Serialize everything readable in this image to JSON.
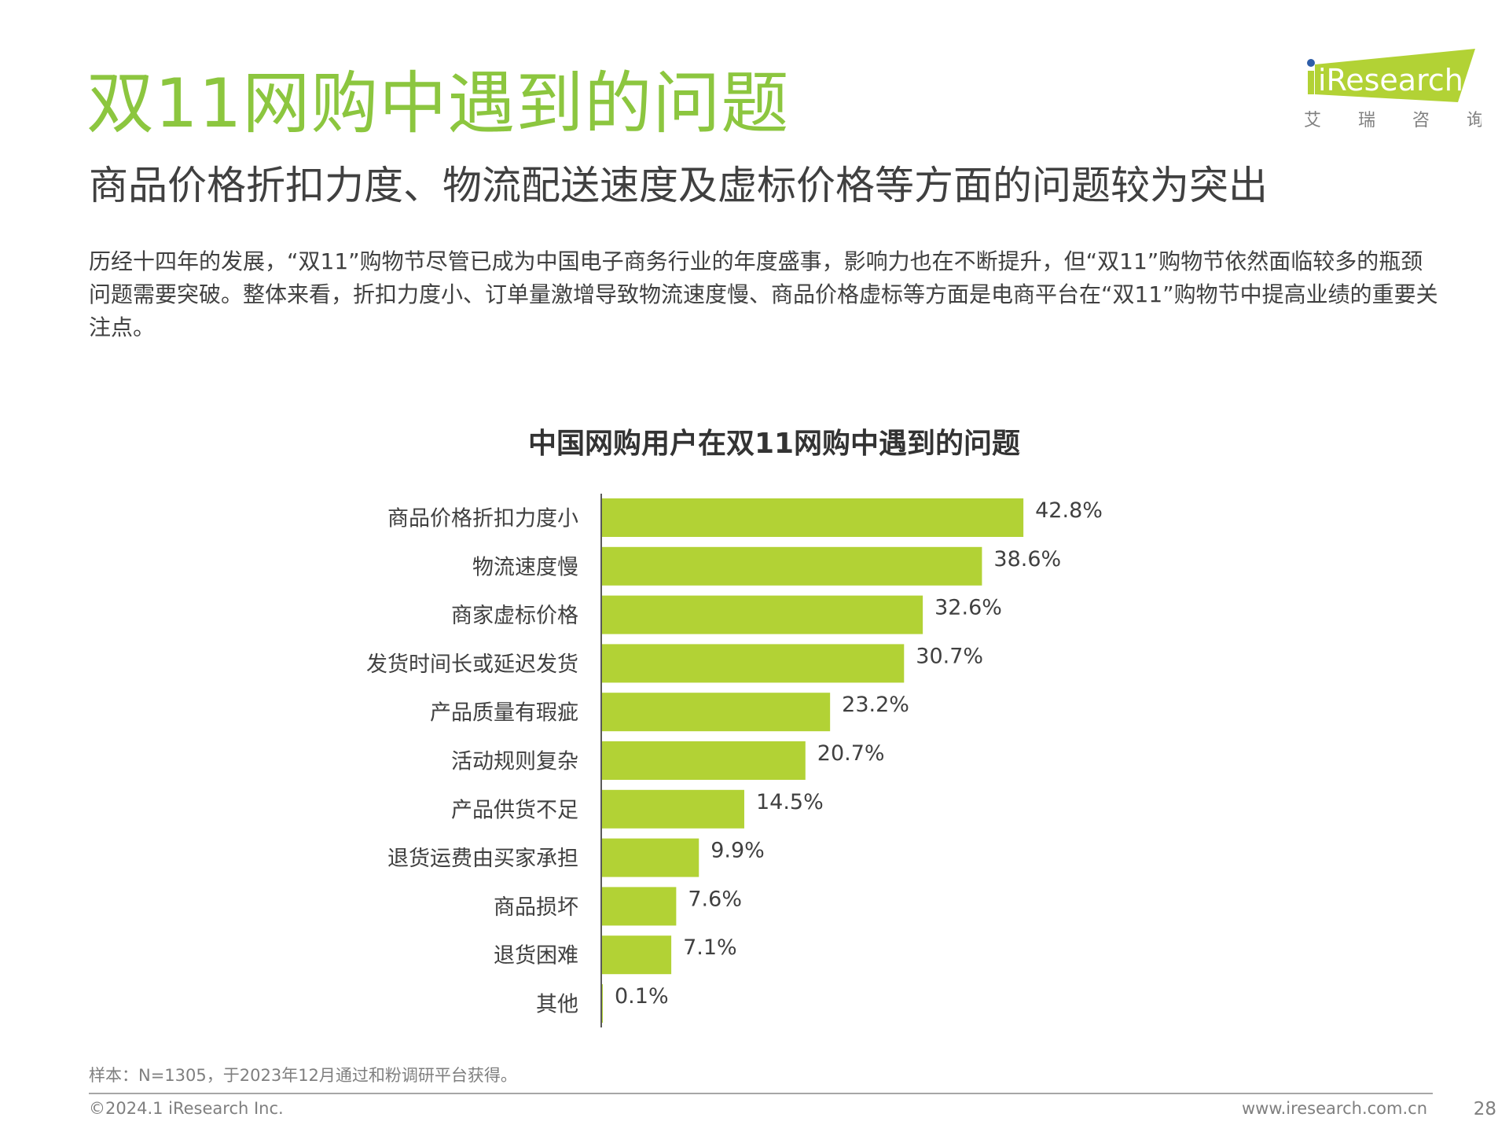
{
  "header": {
    "title": "双11网购中遇到的问题",
    "subtitle": "商品价格折扣力度、物流配送速度及虚标价格等方面的问题较为突出",
    "body": "历经十四年的发展，“双11”购物节尽管已成为中国电子商务行业的年度盛事，影响力也在不断提升，但“双11”购物节依然面临较多的瓶颈问题需要突破。整体来看，折扣力度小、订单量激增导致物流速度慢、商品价格虚标等方面是电商平台在“双11”购物节中提高业绩的重要关注点。"
  },
  "logo": {
    "brand": "iResearch",
    "cn": "艾 瑞 咨 询"
  },
  "colors": {
    "accent": "#8cc63f",
    "bar": "#b2d235",
    "logo_dot": "#2e5da8"
  },
  "chart_data": {
    "type": "bar",
    "orientation": "horizontal",
    "title": "中国网购用户在双11网购中遇到的问题",
    "categories": [
      "商品价格折扣力度小",
      "物流速度慢",
      "商家虚标价格",
      "发货时间长或延迟发货",
      "产品质量有瑕疵",
      "活动规则复杂",
      "产品供货不足",
      "退货运费由买家承担",
      "商品损坏",
      "退货困难",
      "其他"
    ],
    "values": [
      42.8,
      38.6,
      32.6,
      30.7,
      23.2,
      20.7,
      14.5,
      9.9,
      7.6,
      7.1,
      0.1
    ],
    "value_labels": [
      "42.8%",
      "38.6%",
      "32.6%",
      "30.7%",
      "23.2%",
      "20.7%",
      "14.5%",
      "9.9%",
      "7.6%",
      "7.1%",
      "0.1%"
    ],
    "unit": "%",
    "xlim": [
      0,
      50
    ],
    "grid": false
  },
  "footer": {
    "note": "样本：N=1305，于2023年12月通过和粉调研平台获得。",
    "copyright": "©2024.1 iResearch Inc.",
    "website": "www.iresearch.com.cn",
    "page": "28"
  }
}
